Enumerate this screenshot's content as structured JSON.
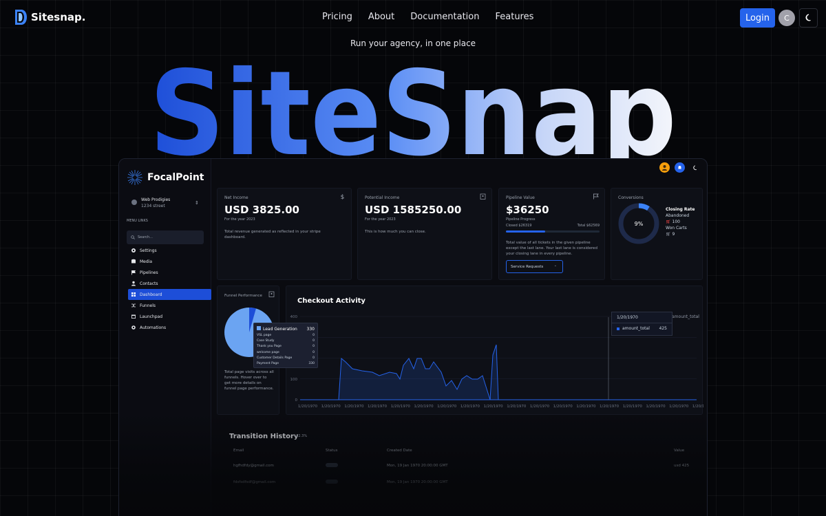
{
  "brand": {
    "name": "Sitesnap.",
    "accent": "#2563eb"
  },
  "nav": {
    "links": [
      "Pricing",
      "About",
      "Documentation",
      "Features"
    ],
    "login": "Login",
    "avatar_initial": "C"
  },
  "tagline": "Run your agency, in one place",
  "hero_title": "SiteSnap",
  "dashboard": {
    "logo": "FocalPoint",
    "account": {
      "name": "Web Prodigies",
      "address": "1234 street"
    },
    "menu_header": "MENU LINKS",
    "search_placeholder": "Search...",
    "menu": [
      {
        "label": "Settings",
        "icon": "gear-icon"
      },
      {
        "label": "Media",
        "icon": "database-icon"
      },
      {
        "label": "Pipelines",
        "icon": "flag-icon"
      },
      {
        "label": "Contacts",
        "icon": "user-icon"
      },
      {
        "label": "Dashboard",
        "icon": "grid-icon",
        "active": true
      },
      {
        "label": "Funnels",
        "icon": "shuffle-icon"
      },
      {
        "label": "Launchpad",
        "icon": "calendar-icon"
      },
      {
        "label": "Automations",
        "icon": "cog-icon"
      }
    ],
    "net_income": {
      "label": "Net Income",
      "value": "USD 3825.00",
      "sub": "For the year 2023",
      "desc": "Total revenue generated as reflected in your stripe dashboard."
    },
    "potential_income": {
      "label": "Potential Income",
      "value": "USD 1585250.00",
      "sub": "For the year 2023",
      "desc": "This is how much you can close."
    },
    "pipeline": {
      "label": "Pipeline Value",
      "value": "$36250",
      "sub": "Pipeline Progress",
      "closed": "Closed $26319",
      "total": "Total $62569",
      "progress": 0.42,
      "desc": "Total value of all tickets in the given pipeline except the last lane. Your last lane is considered your closing lane in every pipeline.",
      "select": "Service Requests"
    },
    "conversions": {
      "label": "Conversions",
      "percent": "9%",
      "closing_rate": "Closing Rate",
      "abandoned_label": "Abandoned",
      "abandoned": "100",
      "won_label": "Won Carts",
      "won": "9"
    },
    "funnel": {
      "label": "Funnel Performance",
      "desc": "Total page visits across all funnels. Hover over to get more details on funnel page performance.",
      "tooltip": {
        "title": "Lead Generation",
        "total": "330",
        "rows": [
          {
            "name": "VSL page",
            "v": "0"
          },
          {
            "name": "Case Study",
            "v": "0"
          },
          {
            "name": "Thank you Page",
            "v": "0"
          },
          {
            "name": "welcome page",
            "v": "0"
          },
          {
            "name": "Customer Details Page",
            "v": "0"
          },
          {
            "name": "Payment Page",
            "v": "330"
          }
        ]
      }
    },
    "checkout": {
      "title": "Checkout Activity",
      "legend": "amount_total",
      "tip_date": "1/20/1970",
      "tip_key": "amount_total",
      "tip_value": "425",
      "tick_label": "1/20/1970",
      "y_ticks": [
        "0",
        "100",
        "200",
        "300",
        "400"
      ]
    },
    "transitions": {
      "title": "Transition History",
      "badge": "+12.3%",
      "columns": [
        "Email",
        "Status",
        "Created Date",
        "Value"
      ],
      "rows": [
        {
          "email": "hgfhdfdy@gmail.com",
          "date": "Mon, 19 Jan 1970 20:00:00 GMT",
          "value": "usd 425"
        },
        {
          "email": "fdsfsdfsdf@gmail.com",
          "date": "Mon, 19 Jan 1970 20:00:00 GMT",
          "value": ""
        }
      ]
    }
  },
  "chart_data": {
    "type": "area",
    "title": "Checkout Activity",
    "series": [
      {
        "name": "amount_total",
        "values": [
          0,
          0,
          0,
          0,
          0,
          0,
          0,
          0,
          0,
          0,
          0,
          0,
          0,
          0,
          0,
          0,
          0,
          0,
          0,
          0,
          0,
          0,
          0,
          0,
          0,
          0,
          0,
          0,
          0,
          0,
          0,
          0,
          0,
          0,
          0,
          0,
          0,
          0,
          0,
          0,
          0,
          0,
          0,
          0,
          0,
          0,
          0,
          0,
          0,
          0,
          0,
          0,
          0,
          0,
          0,
          0,
          0,
          0,
          0,
          0,
          0,
          0,
          0,
          0,
          0,
          0,
          0,
          0,
          0,
          0,
          0,
          0,
          0,
          0,
          0,
          0,
          0,
          425,
          0,
          0,
          0,
          0,
          0,
          0,
          0,
          0,
          0,
          0,
          0,
          0,
          0
        ]
      }
    ],
    "ylim": [
      0,
      400
    ]
  }
}
